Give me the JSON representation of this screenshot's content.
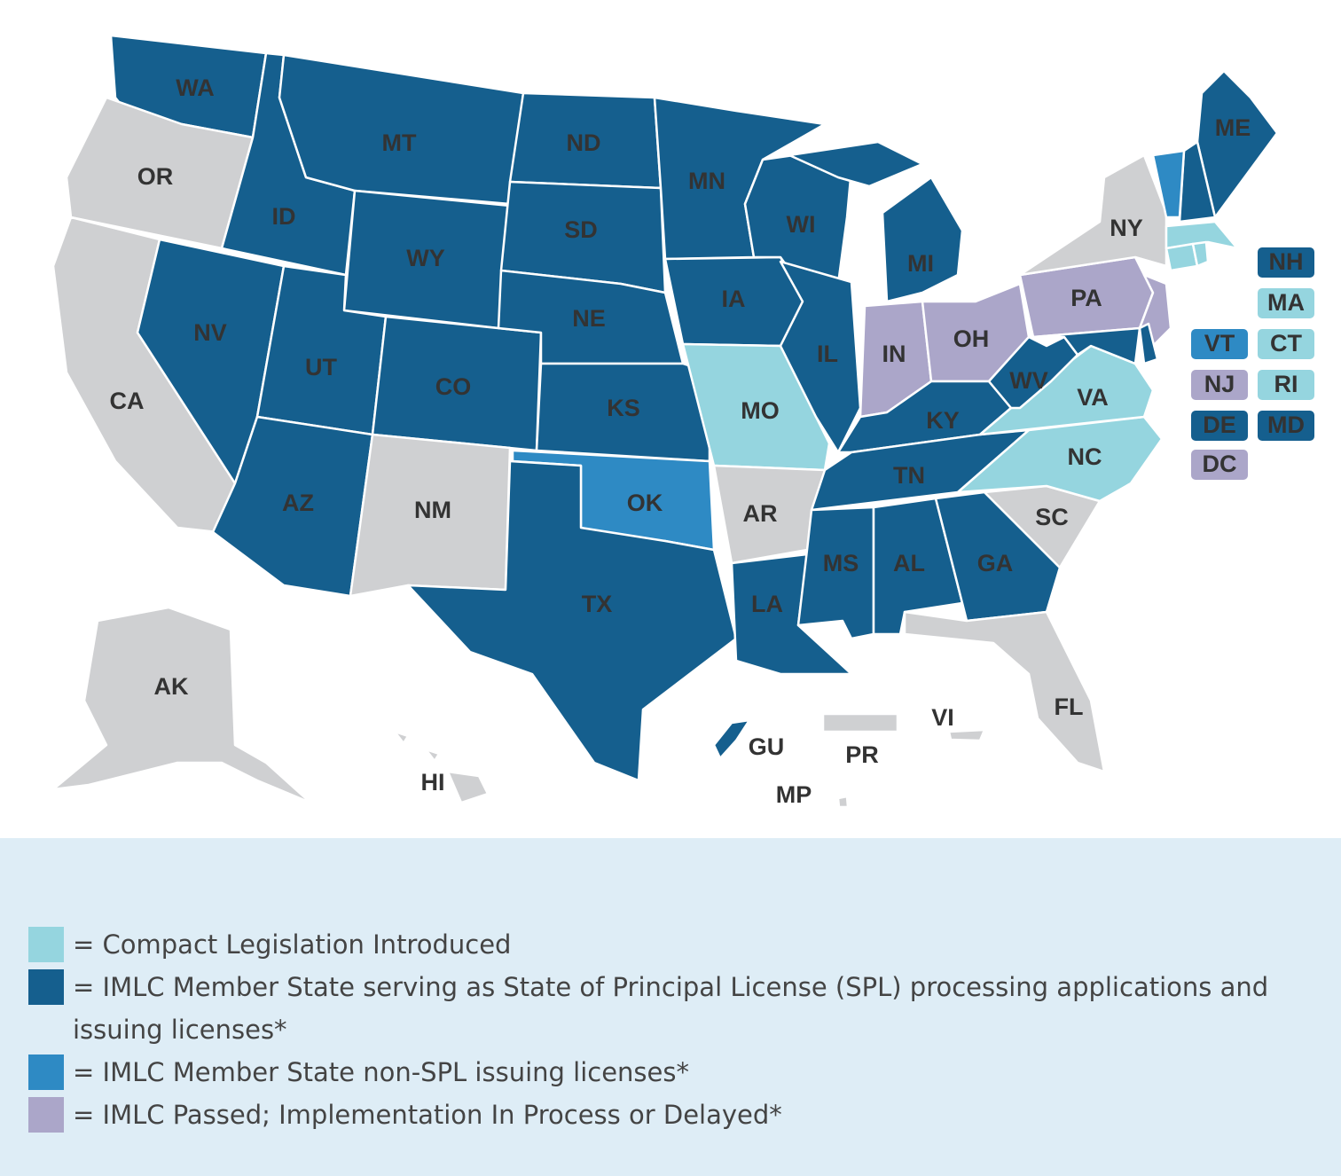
{
  "map": {
    "no_status_color": "#cfd0d2",
    "regions": [
      {
        "label": "WA",
        "status": 1
      },
      {
        "label": "OR",
        "status": null
      },
      {
        "label": "CA",
        "status": null
      },
      {
        "label": "ID",
        "status": 1
      },
      {
        "label": "NV",
        "status": 1
      },
      {
        "label": "MT",
        "status": 1
      },
      {
        "label": "WY",
        "status": 1
      },
      {
        "label": "UT",
        "status": 1
      },
      {
        "label": "AZ",
        "status": 1
      },
      {
        "label": "CO",
        "status": 1
      },
      {
        "label": "NM",
        "status": null
      },
      {
        "label": "ND",
        "status": 1
      },
      {
        "label": "SD",
        "status": 1
      },
      {
        "label": "NE",
        "status": 1
      },
      {
        "label": "KS",
        "status": 1
      },
      {
        "label": "OK",
        "status": 2
      },
      {
        "label": "TX",
        "status": 1
      },
      {
        "label": "MN",
        "status": 1
      },
      {
        "label": "IA",
        "status": 1
      },
      {
        "label": "MO",
        "status": 0
      },
      {
        "label": "AR",
        "status": null
      },
      {
        "label": "LA",
        "status": 1
      },
      {
        "label": "WI",
        "status": 1
      },
      {
        "label": "IL",
        "status": 1
      },
      {
        "label": "MI",
        "status": 1
      },
      {
        "label": "IN",
        "status": 3
      },
      {
        "label": "OH",
        "status": 3
      },
      {
        "label": "KY",
        "status": 1
      },
      {
        "label": "TN",
        "status": 1
      },
      {
        "label": "MS",
        "status": 1
      },
      {
        "label": "AL",
        "status": 1
      },
      {
        "label": "GA",
        "status": 1
      },
      {
        "label": "FL",
        "status": null
      },
      {
        "label": "SC",
        "status": null
      },
      {
        "label": "NC",
        "status": 0
      },
      {
        "label": "VA",
        "status": 0
      },
      {
        "label": "WV",
        "status": 1
      },
      {
        "label": "PA",
        "status": 3
      },
      {
        "label": "NY",
        "status": null
      },
      {
        "label": "ME",
        "status": 1
      },
      {
        "label": "AK",
        "status": null
      },
      {
        "label": "HI",
        "status": null
      },
      {
        "label": "GU",
        "status": 1
      },
      {
        "label": "PR",
        "status": null
      },
      {
        "label": "VI",
        "status": null
      },
      {
        "label": "MP",
        "status": null
      },
      {
        "label": "NH",
        "status": 1
      },
      {
        "label": "MA",
        "status": 0
      },
      {
        "label": "VT",
        "status": 2
      },
      {
        "label": "CT",
        "status": 0
      },
      {
        "label": "NJ",
        "status": 3
      },
      {
        "label": "RI",
        "status": 0
      },
      {
        "label": "DE",
        "status": 1
      },
      {
        "label": "MD",
        "status": 1
      },
      {
        "label": "DC",
        "status": 3
      }
    ]
  },
  "legend": [
    {
      "color": "#95d5df",
      "label": "= Compact Legislation Introduced"
    },
    {
      "color": "#155f8e",
      "label": "= IMLC Member State serving as State of Principal License (SPL) processing applications and issuing licenses*"
    },
    {
      "color": "#2e8ac4",
      "label": "= IMLC Member State non-SPL issuing licenses*"
    },
    {
      "color": "#aba6c9",
      "label": "= IMLC Passed; Implementation In Process or Delayed*"
    }
  ]
}
